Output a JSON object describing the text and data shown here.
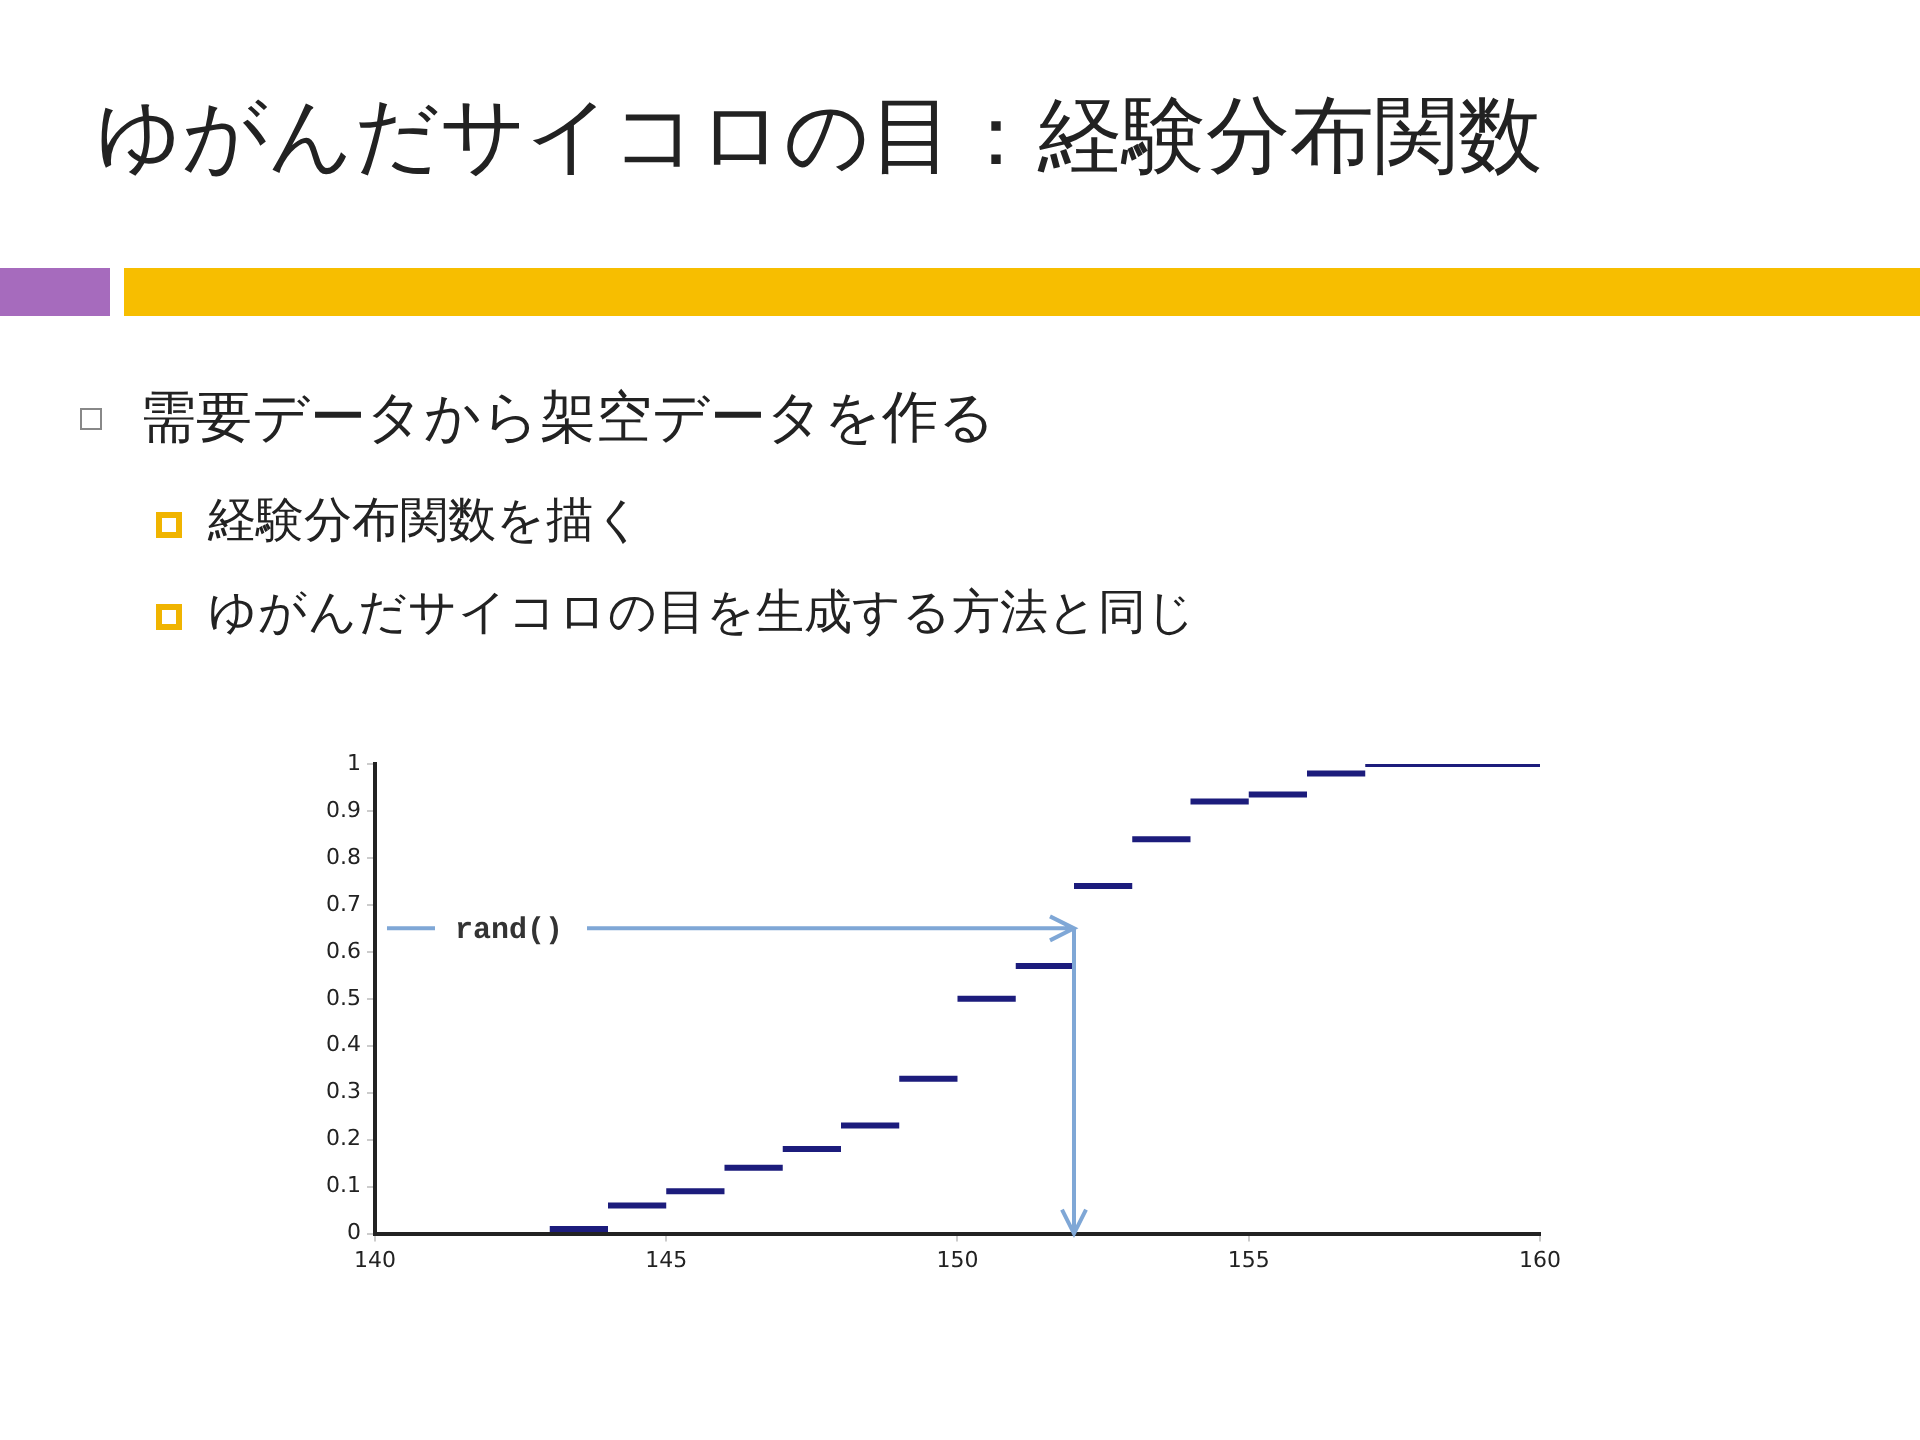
{
  "chart_data": {
    "type": "step",
    "title": "ゆがんだサイコロの目：経験分布関数",
    "annotations": [
      "需要データから架空データを作る",
      "経験分布関数を描く",
      "ゆがんだサイコロの目を生成する方法と同じ"
    ],
    "ref_lines": [
      {
        "axis": "y",
        "value": 0.65,
        "label": "rand()",
        "color": "#7fa7d6"
      },
      {
        "axis": "x",
        "value": 152,
        "color": "#7fa7d6"
      }
    ],
    "x": [
      143,
      144,
      145,
      146,
      147,
      148,
      149,
      150,
      151,
      152,
      153,
      154,
      155,
      156,
      157,
      160
    ],
    "series": [
      {
        "color": "#1c1c7c",
        "values": [
          0.01,
          0.06,
          0.09,
          0.14,
          0.18,
          0.23,
          0.33,
          0.5,
          0.57,
          0.74,
          0.84,
          0.92,
          0.935,
          0.98,
          1,
          1
        ]
      }
    ],
    "xlim": [
      140,
      160
    ],
    "xticks": [
      140,
      145,
      150,
      155,
      160
    ],
    "ylim": [
      0,
      1
    ],
    "yticks": [
      0,
      0.1,
      0.2,
      0.3,
      0.4,
      0.5,
      0.6,
      0.7,
      0.8,
      0.9,
      1
    ],
    "grid": false,
    "legend": false
  }
}
